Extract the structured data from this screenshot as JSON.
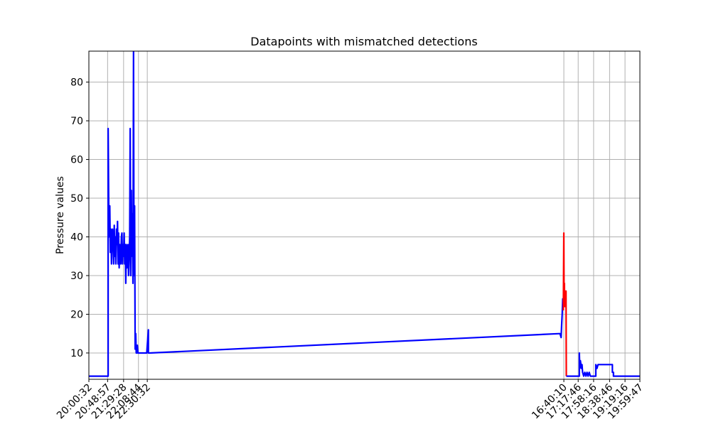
{
  "chart_data": {
    "type": "line",
    "title": "Datapoints with mismatched detections",
    "xlabel": "",
    "ylabel": "Pressure values",
    "ylim": [
      3.2,
      88
    ],
    "yticks": [
      10,
      20,
      30,
      40,
      50,
      60,
      70,
      80
    ],
    "xlim": [
      0,
      100
    ],
    "xticks": [
      {
        "x": 0.0,
        "label": "20:00:32"
      },
      {
        "x": 3.4,
        "label": "20:48:57"
      },
      {
        "x": 6.3,
        "label": "21:29:28"
      },
      {
        "x": 9.0,
        "label": "22:08:44"
      },
      {
        "x": 10.6,
        "label": "22:30:32"
      },
      {
        "x": 86.2,
        "label": "16:40:10"
      },
      {
        "x": 88.8,
        "label": "17:17:46"
      },
      {
        "x": 91.6,
        "label": "17:58:16"
      },
      {
        "x": 94.5,
        "label": "18:38:46"
      },
      {
        "x": 97.3,
        "label": "19:19:16"
      },
      {
        "x": 100.0,
        "label": "19:59:47"
      }
    ],
    "grid": true,
    "colors": {
      "normal": "#0000ff",
      "mismatch": "#ff0000",
      "grid": "#b0b0b0"
    },
    "series": [
      {
        "color": "#0000ff",
        "x": [
          0,
          3.5,
          3.5,
          3.6,
          3.7,
          3.8,
          3.9,
          4.0,
          4.1,
          4.2,
          4.3,
          4.4,
          4.5,
          4.6,
          4.7,
          4.8,
          4.9,
          5.0,
          5.1,
          5.2,
          5.3,
          5.4,
          5.5,
          5.6,
          5.7,
          5.8,
          5.9,
          6.0,
          6.1,
          6.2,
          6.3,
          6.4,
          6.5,
          6.6,
          6.7,
          6.8,
          6.9,
          7.0,
          7.1,
          7.2,
          7.3,
          7.4,
          7.5,
          7.6,
          7.7,
          7.8,
          7.9,
          8.0,
          8.1,
          8.2,
          8.3,
          8.4,
          8.5,
          8.6,
          8.7,
          8.8,
          8.9,
          9.0,
          9.1,
          9.2,
          9.3,
          9.4,
          9.5,
          9.6,
          9.7,
          9.8,
          9.9,
          10.0,
          10.1,
          10.3,
          10.5,
          10.8,
          10.8,
          11.0,
          85.5,
          85.7,
          85.8,
          85.9,
          86.0,
          86.1
        ],
        "y": [
          4,
          4,
          68,
          49,
          40,
          48,
          36,
          42,
          33,
          40,
          42,
          38,
          33,
          43,
          35,
          40,
          33,
          42,
          38,
          44,
          33,
          41,
          32,
          38,
          35,
          33,
          40,
          41,
          33,
          38,
          35,
          41,
          33,
          38,
          28,
          38,
          32,
          35,
          38,
          30,
          34,
          40,
          68,
          30,
          52,
          35,
          46,
          28,
          88,
          30,
          48,
          11,
          15,
          10,
          10,
          12,
          10,
          10,
          10,
          10,
          10,
          10,
          10,
          10,
          10,
          10,
          10,
          10,
          10,
          10,
          10,
          16,
          10,
          10,
          15,
          14,
          17,
          20,
          24,
          21
        ]
      },
      {
        "color": "#ff0000",
        "x": [
          86.1,
          86.2,
          86.25,
          86.3,
          86.35,
          86.4,
          86.45,
          86.5,
          86.55,
          86.6,
          86.65
        ],
        "y": [
          21,
          41,
          22,
          28,
          23,
          26,
          22,
          26,
          22,
          26,
          4
        ]
      },
      {
        "color": "#0000ff",
        "x": [
          86.65,
          89.0,
          89.0,
          89.1,
          89.2,
          89.3,
          89.4,
          89.5,
          89.6,
          89.8,
          90.0,
          90.2,
          90.4,
          90.6,
          90.8,
          91.0,
          91.2,
          91.4,
          91.6,
          91.8,
          92.0,
          92.0,
          92.2,
          92.4,
          92.4,
          95.0,
          95.0,
          95.2,
          95.2,
          100
        ],
        "y": [
          4,
          4,
          10,
          6,
          8,
          7,
          6,
          7,
          5,
          4,
          5,
          4,
          5,
          4,
          5,
          4,
          4,
          4,
          4,
          4,
          4,
          7,
          6,
          7,
          7,
          7,
          5,
          5,
          4,
          4
        ]
      }
    ]
  }
}
